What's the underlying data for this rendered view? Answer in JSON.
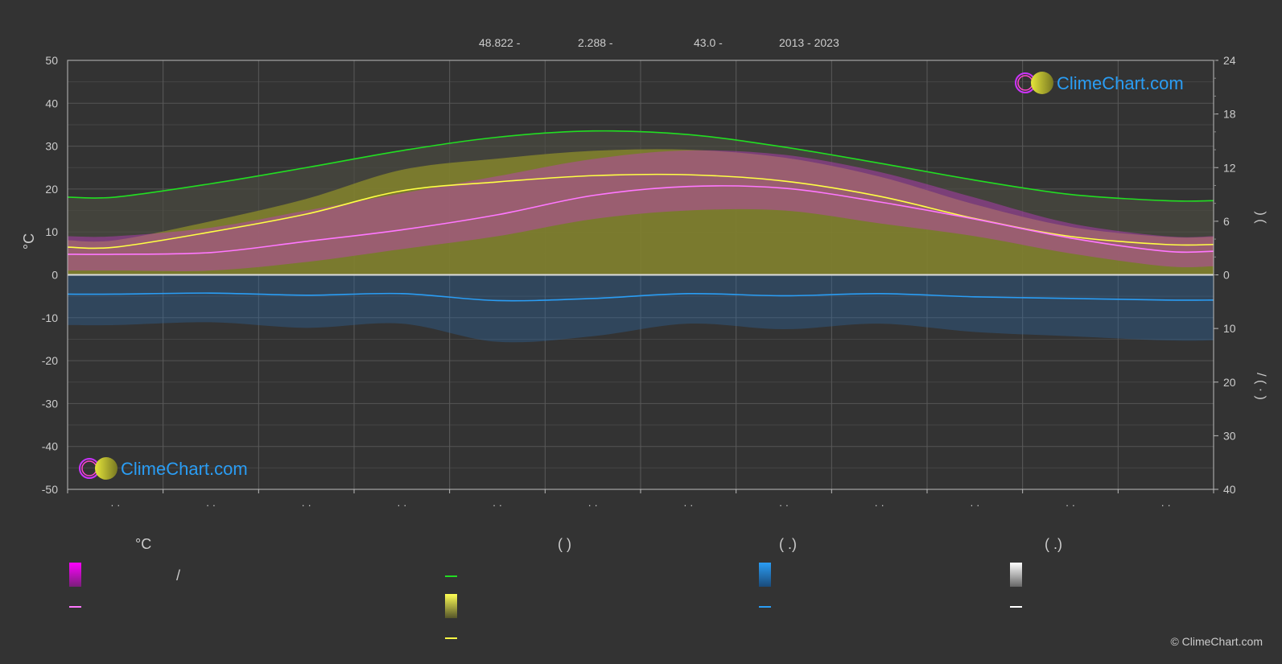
{
  "header": {
    "latitude": "48.822 -",
    "longitude": "2.288 -",
    "elevation": "43.0 -",
    "years": "2013 - 2023"
  },
  "axes": {
    "left_label": "°C",
    "right_top_marks": ")   (",
    "right_bottom_marks": "/   (   ·   )"
  },
  "logo": {
    "text": "ClimeChart.com"
  },
  "copyright": "© ClimeChart.com",
  "legend": {
    "headers": [
      "°C",
      "(          )",
      "(   .)",
      "(   .)"
    ],
    "slash": "/"
  },
  "colors": {
    "background": "#333333",
    "temp_band": "#d63bd6",
    "mean_temp": "#ff77ff",
    "daylight": "#22dd22",
    "sunshine_band": "#b8b82a",
    "sunshine_line": "#ffff44",
    "rain_band": "#2b7bc8",
    "rain_line": "#2a9df4",
    "snow": "#ffffff"
  },
  "chart_data": {
    "type": "line",
    "x_months": [
      1,
      2,
      3,
      4,
      5,
      6,
      7,
      8,
      9,
      10,
      11,
      12
    ],
    "x_tick_labels": [
      "· ·",
      "· ·",
      "· ·",
      "· ·",
      "· ·",
      "· ·",
      "· ·",
      "· ·",
      "· ·",
      "· ·",
      "· ·",
      "· ·"
    ],
    "y_left": {
      "label": "°C",
      "range": [
        -50,
        50
      ],
      "ticks": [
        50,
        40,
        30,
        20,
        10,
        0,
        -10,
        -20,
        -30,
        -40,
        -50
      ]
    },
    "y_right_top": {
      "range": [
        0,
        24
      ],
      "ticks": [
        24,
        18,
        12,
        6,
        0
      ]
    },
    "y_right_bottom": {
      "range": [
        0,
        40
      ],
      "ticks": [
        0,
        10,
        20,
        30,
        40
      ]
    },
    "grid": true,
    "series": [
      {
        "key": "mean_temp",
        "axis": "left",
        "color": "#ff77ff",
        "values": [
          4.8,
          5.2,
          7.8,
          10.5,
          14.0,
          18.5,
          20.6,
          20.2,
          17.0,
          13.0,
          8.6,
          5.5
        ]
      },
      {
        "key": "daylight_hours",
        "axis": "right_top",
        "color": "#22dd22",
        "values": [
          8.7,
          10.2,
          12.0,
          13.9,
          15.4,
          16.1,
          15.7,
          14.3,
          12.5,
          10.6,
          9.0,
          8.3
        ]
      },
      {
        "key": "sunshine_hours",
        "axis": "right_top",
        "color": "#ffff44",
        "values": [
          3.1,
          4.8,
          6.8,
          9.4,
          10.4,
          11.1,
          11.2,
          10.5,
          8.8,
          6.3,
          4.3,
          3.4
        ]
      },
      {
        "key": "precipitation_mm",
        "axis": "right_bottom",
        "color": "#2a9df4",
        "values": [
          3.6,
          3.4,
          3.8,
          3.5,
          4.8,
          4.4,
          3.5,
          3.9,
          3.5,
          4.1,
          4.4,
          4.7
        ]
      }
    ],
    "max_temp_envelope": [
      9,
      11,
      15,
      19,
      23,
      27,
      29,
      28,
      24,
      18,
      12,
      9
    ],
    "min_temp_envelope": [
      1,
      1,
      3,
      6,
      9,
      13,
      15,
      15,
      12,
      9,
      5,
      2
    ]
  }
}
